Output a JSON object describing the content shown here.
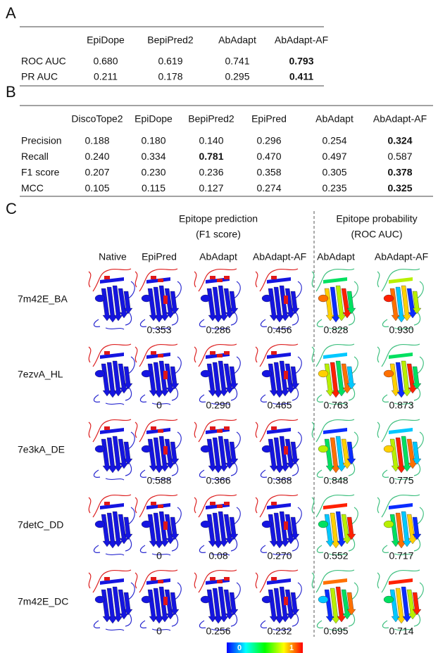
{
  "panel_a": {
    "label": "A",
    "headers": [
      "EpiDope",
      "BepiPred2",
      "AbAdapt",
      "AbAdapt-AF"
    ],
    "rows": [
      {
        "label": "ROC AUC",
        "values": [
          "0.680",
          "0.619",
          "0.741",
          "0.793"
        ],
        "bold": 3
      },
      {
        "label": "PR AUC",
        "values": [
          "0.211",
          "0.178",
          "0.295",
          "0.411"
        ],
        "bold": 3
      }
    ]
  },
  "panel_b": {
    "label": "B",
    "headers": [
      "DiscoTope2",
      "EpiDope",
      "BepiPred2",
      "EpiPred",
      "AbAdapt",
      "AbAdapt-AF"
    ],
    "rows": [
      {
        "label": "Precision",
        "values": [
          "0.188",
          "0.180",
          "0.140",
          "0.296",
          "0.254",
          "0.324"
        ],
        "bold": 5
      },
      {
        "label": "Recall",
        "values": [
          "0.240",
          "0.334",
          "0.781",
          "0.470",
          "0.497",
          "0.587"
        ],
        "bold": 2
      },
      {
        "label": "F1 score",
        "values": [
          "0.207",
          "0.230",
          "0.236",
          "0.358",
          "0.305",
          "0.378"
        ],
        "bold": 5
      },
      {
        "label": "MCC",
        "values": [
          "0.105",
          "0.115",
          "0.127",
          "0.274",
          "0.235",
          "0.325"
        ],
        "bold": 5
      }
    ]
  },
  "panel_c": {
    "label": "C",
    "groups": [
      {
        "lines": [
          "Epitope prediction",
          "(F1 score)"
        ]
      },
      {
        "lines": [
          "Epitope probability",
          "(ROC AUC)"
        ]
      }
    ],
    "columns": [
      "Native",
      "EpiPred",
      "AbAdapt",
      "AbAdapt-AF",
      "AbAdapt",
      "AbAdapt-AF"
    ],
    "rows": [
      {
        "name": "7m42E_BA",
        "scores": [
          "0.353",
          "0.286",
          "0.456",
          "0.828",
          "0.930"
        ]
      },
      {
        "name": "7ezvA_HL",
        "scores": [
          "0",
          "0.290",
          "0.465",
          "0.763",
          "0.873"
        ]
      },
      {
        "name": "7e3kA_DE",
        "scores": [
          "0.588",
          "0.366",
          "0.368",
          "0.848",
          "0.775"
        ]
      },
      {
        "name": "7detC_DD",
        "scores": [
          "0",
          "0.08",
          "0.270",
          "0.552",
          "0.717"
        ]
      },
      {
        "name": "7m42E_DC",
        "scores": [
          "0",
          "0.256",
          "0.232",
          "0.695",
          "0.714"
        ]
      }
    ],
    "colorbar": {
      "min_label": "0",
      "max_label": "1"
    }
  }
}
